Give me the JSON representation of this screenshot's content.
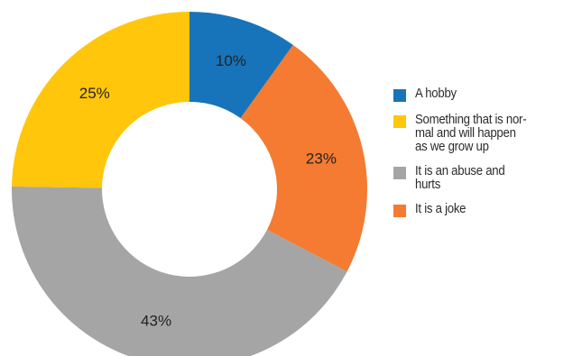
{
  "chart_data": {
    "type": "pie",
    "variant": "donut",
    "title": "",
    "slices": [
      {
        "label": "A hobby",
        "value": 10,
        "display": "10%",
        "color": "#1874BA"
      },
      {
        "label": "It is a joke",
        "value": 23,
        "display": "23%",
        "color": "#F47B31"
      },
      {
        "label": "It is an abuse and hurts",
        "value": 43,
        "display": "43%",
        "color": "#A5A5A5"
      },
      {
        "label": "Something that is normal and will happen as we grow up",
        "value": 25,
        "display": "25%",
        "color": "#FFC60B"
      }
    ],
    "legend": {
      "placement": "right",
      "items": [
        {
          "lines": [
            "A hobby"
          ],
          "color": "#1874BA"
        },
        {
          "lines": [
            "Something that is nor-",
            "mal and will happen",
            "as we grow up"
          ],
          "color": "#FFC60B"
        },
        {
          "lines": [
            "It is an abuse and",
            "hurts"
          ],
          "color": "#A5A5A5"
        },
        {
          "lines": [
            "It is a joke"
          ],
          "color": "#F47B31"
        }
      ]
    }
  }
}
